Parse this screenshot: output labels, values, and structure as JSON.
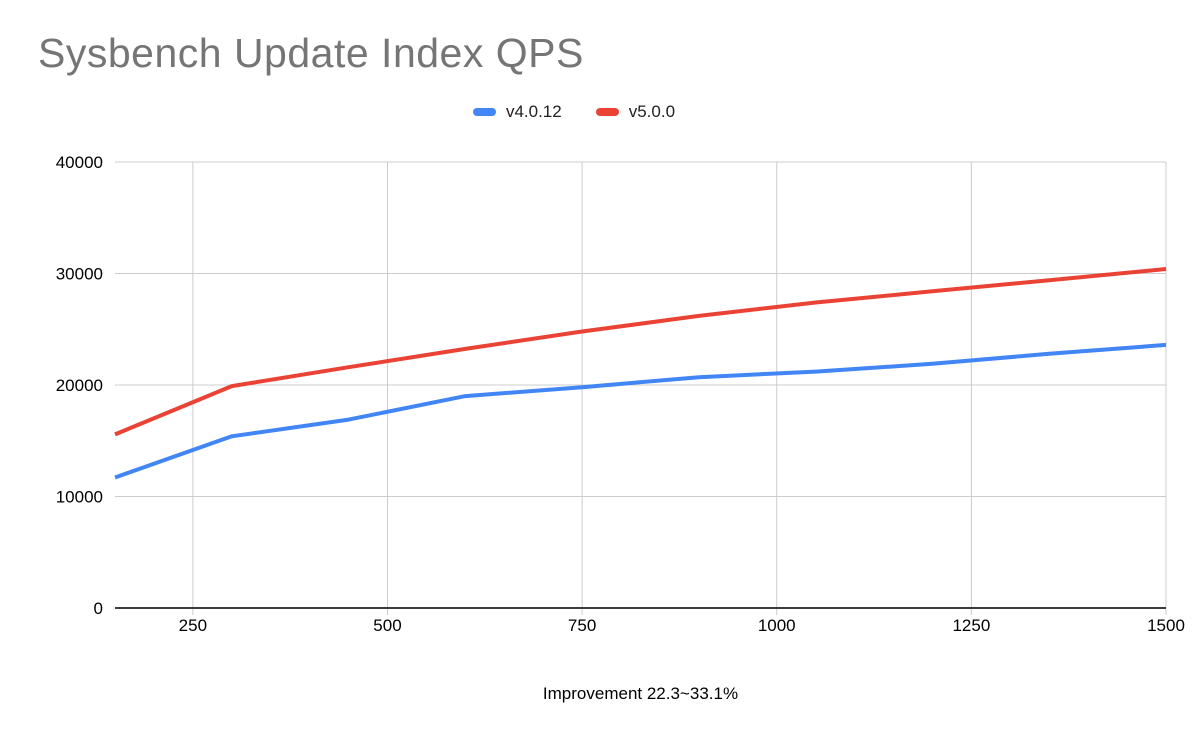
{
  "title": "Sysbench Update Index QPS",
  "x_axis_title": "Improvement 22.3~33.1%",
  "legend": [
    {
      "label": "v4.0.12",
      "color": "#4285F4"
    },
    {
      "label": "v5.0.0",
      "color": "#EA4335"
    }
  ],
  "colors": {
    "background": "#ffffff",
    "title_text": "#757575",
    "axis_label_text": "#000000",
    "gridline": "#cccccc",
    "zero_axis_line": "#3c3c3c",
    "series_v4012": "#4285F4",
    "series_v500": "#EA4335"
  },
  "chart_data": {
    "type": "line",
    "title": "Sysbench Update Index QPS",
    "xlabel": "Improvement 22.3~33.1%",
    "ylabel": "",
    "x": [
      150,
      300,
      450,
      600,
      750,
      900,
      1050,
      1200,
      1350,
      1500
    ],
    "series": [
      {
        "name": "v4.0.12",
        "color": "#4285F4",
        "values": [
          11700,
          15400,
          16900,
          19000,
          19800,
          20700,
          21200,
          21900,
          22800,
          23600
        ]
      },
      {
        "name": "v5.0.0",
        "color": "#EA4335",
        "values": [
          15570,
          19900,
          21600,
          23240,
          24800,
          26200,
          27400,
          28400,
          29400,
          30400
        ]
      }
    ],
    "xlim": [
      150,
      1500
    ],
    "ylim": [
      0,
      40000
    ],
    "xticks": [
      250,
      500,
      750,
      1000,
      1250,
      1500
    ],
    "yticks": [
      0,
      10000,
      20000,
      30000,
      40000
    ],
    "grid": true,
    "legend_position": "top"
  }
}
